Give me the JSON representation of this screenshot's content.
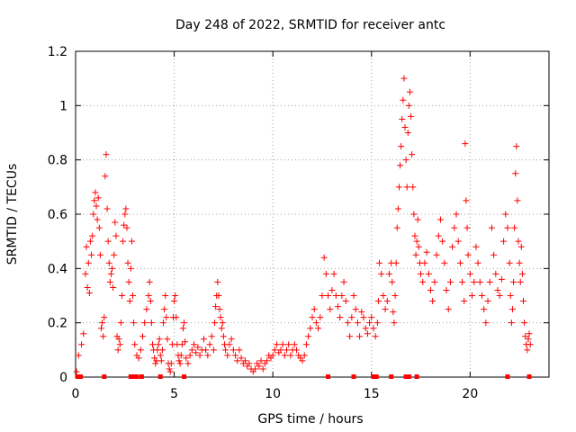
{
  "chart_data": {
    "type": "scatter",
    "title": "Day 248 of 2022, SRMTID for receiver antc",
    "xlabel": "GPS time / hours",
    "ylabel": "SRMTID / TECUs",
    "xlim": [
      0,
      24
    ],
    "ylim": [
      0,
      1.2
    ],
    "xticks": [
      0,
      5,
      10,
      15,
      20
    ],
    "yticks": [
      0,
      0.2,
      0.4,
      0.6,
      0.8,
      1.0,
      1.2
    ],
    "xtick_labels": [
      "0",
      "5",
      "10",
      "15",
      "20"
    ],
    "ytick_labels": [
      "0",
      "0.2",
      "0.4",
      "0.6",
      "0.8",
      "1",
      "1.2"
    ],
    "grid": true,
    "marker": "+",
    "color": "#ff0000",
    "series": [
      {
        "name": "SRMTID",
        "points": [
          [
            0.05,
            0.02
          ],
          [
            0.15,
            0.08
          ],
          [
            0.3,
            0.12
          ],
          [
            0.4,
            0.16
          ],
          [
            0.5,
            0.38
          ],
          [
            0.55,
            0.48
          ],
          [
            0.6,
            0.33
          ],
          [
            0.65,
            0.42
          ],
          [
            0.7,
            0.31
          ],
          [
            0.75,
            0.5
          ],
          [
            0.8,
            0.45
          ],
          [
            0.85,
            0.52
          ],
          [
            0.9,
            0.6
          ],
          [
            0.95,
            0.65
          ],
          [
            1.0,
            0.68
          ],
          [
            1.05,
            0.63
          ],
          [
            1.1,
            0.58
          ],
          [
            1.15,
            0.66
          ],
          [
            1.2,
            0.55
          ],
          [
            1.25,
            0.45
          ],
          [
            1.3,
            0.18
          ],
          [
            1.35,
            0.2
          ],
          [
            1.4,
            0.15
          ],
          [
            1.45,
            0.22
          ],
          [
            1.5,
            0.74
          ],
          [
            1.55,
            0.82
          ],
          [
            1.6,
            0.62
          ],
          [
            1.65,
            0.5
          ],
          [
            1.7,
            0.42
          ],
          [
            1.75,
            0.35
          ],
          [
            1.8,
            0.38
          ],
          [
            1.85,
            0.4
          ],
          [
            1.9,
            0.33
          ],
          [
            1.95,
            0.45
          ],
          [
            2.0,
            0.57
          ],
          [
            2.05,
            0.52
          ],
          [
            2.1,
            0.15
          ],
          [
            2.15,
            0.1
          ],
          [
            2.2,
            0.14
          ],
          [
            2.25,
            0.12
          ],
          [
            2.3,
            0.2
          ],
          [
            2.35,
            0.3
          ],
          [
            2.4,
            0.5
          ],
          [
            2.45,
            0.56
          ],
          [
            2.5,
            0.6
          ],
          [
            2.55,
            0.62
          ],
          [
            2.6,
            0.55
          ],
          [
            2.65,
            0.42
          ],
          [
            2.7,
            0.35
          ],
          [
            2.75,
            0.28
          ],
          [
            2.8,
            0.4
          ],
          [
            2.85,
            0.5
          ],
          [
            2.9,
            0.3
          ],
          [
            2.95,
            0.2
          ],
          [
            3.0,
            0.12
          ],
          [
            3.1,
            0.08
          ],
          [
            3.2,
            0.07
          ],
          [
            3.3,
            0.1
          ],
          [
            3.4,
            0.15
          ],
          [
            3.5,
            0.2
          ],
          [
            3.6,
            0.25
          ],
          [
            3.7,
            0.3
          ],
          [
            3.75,
            0.35
          ],
          [
            3.8,
            0.28
          ],
          [
            3.85,
            0.2
          ],
          [
            3.9,
            0.12
          ],
          [
            3.95,
            0.1
          ],
          [
            4.0,
            0.07
          ],
          [
            4.05,
            0.05
          ],
          [
            4.1,
            0.06
          ],
          [
            4.15,
            0.1
          ],
          [
            4.2,
            0.12
          ],
          [
            4.25,
            0.14
          ],
          [
            4.3,
            0.08
          ],
          [
            4.35,
            0.06
          ],
          [
            4.4,
            0.1
          ],
          [
            4.45,
            0.2
          ],
          [
            4.5,
            0.25
          ],
          [
            4.55,
            0.3
          ],
          [
            4.6,
            0.22
          ],
          [
            4.65,
            0.14
          ],
          [
            4.7,
            0.05
          ],
          [
            4.75,
            0.03
          ],
          [
            4.8,
            0.02
          ],
          [
            4.85,
            0.05
          ],
          [
            4.9,
            0.12
          ],
          [
            4.95,
            0.22
          ],
          [
            5.0,
            0.28
          ],
          [
            5.05,
            0.3
          ],
          [
            5.1,
            0.22
          ],
          [
            5.15,
            0.12
          ],
          [
            5.2,
            0.08
          ],
          [
            5.25,
            0.06
          ],
          [
            5.3,
            0.05
          ],
          [
            5.35,
            0.08
          ],
          [
            5.4,
            0.12
          ],
          [
            5.45,
            0.18
          ],
          [
            5.5,
            0.2
          ],
          [
            5.55,
            0.13
          ],
          [
            5.6,
            0.07
          ],
          [
            5.7,
            0.05
          ],
          [
            5.8,
            0.08
          ],
          [
            5.9,
            0.1
          ],
          [
            6.0,
            0.12
          ],
          [
            6.1,
            0.09
          ],
          [
            6.2,
            0.11
          ],
          [
            6.3,
            0.08
          ],
          [
            6.4,
            0.1
          ],
          [
            6.5,
            0.14
          ],
          [
            6.6,
            0.1
          ],
          [
            6.7,
            0.08
          ],
          [
            6.8,
            0.12
          ],
          [
            6.9,
            0.15
          ],
          [
            7.0,
            0.1
          ],
          [
            7.05,
            0.2
          ],
          [
            7.1,
            0.26
          ],
          [
            7.15,
            0.3
          ],
          [
            7.2,
            0.35
          ],
          [
            7.25,
            0.3
          ],
          [
            7.3,
            0.25
          ],
          [
            7.35,
            0.22
          ],
          [
            7.4,
            0.18
          ],
          [
            7.45,
            0.2
          ],
          [
            7.5,
            0.15
          ],
          [
            7.55,
            0.12
          ],
          [
            7.6,
            0.1
          ],
          [
            7.7,
            0.08
          ],
          [
            7.8,
            0.12
          ],
          [
            7.9,
            0.14
          ],
          [
            8.0,
            0.1
          ],
          [
            8.1,
            0.08
          ],
          [
            8.2,
            0.06
          ],
          [
            8.3,
            0.1
          ],
          [
            8.4,
            0.07
          ],
          [
            8.5,
            0.05
          ],
          [
            8.6,
            0.06
          ],
          [
            8.7,
            0.04
          ],
          [
            8.8,
            0.05
          ],
          [
            8.9,
            0.03
          ],
          [
            9.0,
            0.02
          ],
          [
            9.1,
            0.03
          ],
          [
            9.2,
            0.05
          ],
          [
            9.3,
            0.04
          ],
          [
            9.4,
            0.06
          ],
          [
            9.5,
            0.03
          ],
          [
            9.6,
            0.05
          ],
          [
            9.7,
            0.06
          ],
          [
            9.8,
            0.08
          ],
          [
            9.9,
            0.07
          ],
          [
            10.0,
            0.08
          ],
          [
            10.1,
            0.1
          ],
          [
            10.2,
            0.12
          ],
          [
            10.3,
            0.09
          ],
          [
            10.4,
            0.1
          ],
          [
            10.5,
            0.12
          ],
          [
            10.6,
            0.08
          ],
          [
            10.7,
            0.1
          ],
          [
            10.8,
            0.12
          ],
          [
            10.9,
            0.08
          ],
          [
            11.0,
            0.1
          ],
          [
            11.1,
            0.12
          ],
          [
            11.2,
            0.1
          ],
          [
            11.3,
            0.08
          ],
          [
            11.4,
            0.07
          ],
          [
            11.5,
            0.06
          ],
          [
            11.6,
            0.08
          ],
          [
            11.7,
            0.12
          ],
          [
            11.8,
            0.15
          ],
          [
            11.9,
            0.18
          ],
          [
            12.0,
            0.22
          ],
          [
            12.1,
            0.25
          ],
          [
            12.2,
            0.2
          ],
          [
            12.3,
            0.18
          ],
          [
            12.4,
            0.22
          ],
          [
            12.5,
            0.3
          ],
          [
            12.6,
            0.44
          ],
          [
            12.7,
            0.38
          ],
          [
            12.8,
            0.3
          ],
          [
            12.9,
            0.25
          ],
          [
            13.0,
            0.32
          ],
          [
            13.1,
            0.38
          ],
          [
            13.2,
            0.3
          ],
          [
            13.3,
            0.26
          ],
          [
            13.4,
            0.22
          ],
          [
            13.5,
            0.3
          ],
          [
            13.6,
            0.35
          ],
          [
            13.7,
            0.28
          ],
          [
            13.8,
            0.2
          ],
          [
            13.9,
            0.15
          ],
          [
            14.0,
            0.22
          ],
          [
            14.1,
            0.3
          ],
          [
            14.2,
            0.25
          ],
          [
            14.3,
            0.2
          ],
          [
            14.4,
            0.15
          ],
          [
            14.5,
            0.24
          ],
          [
            14.6,
            0.22
          ],
          [
            14.7,
            0.18
          ],
          [
            14.8,
            0.16
          ],
          [
            14.9,
            0.2
          ],
          [
            15.0,
            0.22
          ],
          [
            15.1,
            0.18
          ],
          [
            15.2,
            0.15
          ],
          [
            15.3,
            0.2
          ],
          [
            15.35,
            0.28
          ],
          [
            15.4,
            0.42
          ],
          [
            15.5,
            0.38
          ],
          [
            15.6,
            0.3
          ],
          [
            15.7,
            0.25
          ],
          [
            15.8,
            0.28
          ],
          [
            15.9,
            0.38
          ],
          [
            16.0,
            0.42
          ],
          [
            16.05,
            0.35
          ],
          [
            16.1,
            0.24
          ],
          [
            16.15,
            0.2
          ],
          [
            16.2,
            0.3
          ],
          [
            16.25,
            0.42
          ],
          [
            16.3,
            0.55
          ],
          [
            16.35,
            0.62
          ],
          [
            16.4,
            0.7
          ],
          [
            16.45,
            0.78
          ],
          [
            16.5,
            0.85
          ],
          [
            16.55,
            0.95
          ],
          [
            16.6,
            1.02
          ],
          [
            16.65,
            1.1
          ],
          [
            16.7,
            0.92
          ],
          [
            16.75,
            0.8
          ],
          [
            16.8,
            0.7
          ],
          [
            16.85,
            0.9
          ],
          [
            16.9,
            1.0
          ],
          [
            16.95,
            1.05
          ],
          [
            17.0,
            0.96
          ],
          [
            17.05,
            0.82
          ],
          [
            17.1,
            0.7
          ],
          [
            17.15,
            0.6
          ],
          [
            17.2,
            0.52
          ],
          [
            17.25,
            0.45
          ],
          [
            17.3,
            0.5
          ],
          [
            17.35,
            0.58
          ],
          [
            17.4,
            0.48
          ],
          [
            17.45,
            0.42
          ],
          [
            17.5,
            0.38
          ],
          [
            17.6,
            0.35
          ],
          [
            17.7,
            0.42
          ],
          [
            17.8,
            0.46
          ],
          [
            17.9,
            0.38
          ],
          [
            18.0,
            0.32
          ],
          [
            18.1,
            0.28
          ],
          [
            18.2,
            0.35
          ],
          [
            18.3,
            0.45
          ],
          [
            18.4,
            0.52
          ],
          [
            18.5,
            0.58
          ],
          [
            18.6,
            0.5
          ],
          [
            18.7,
            0.42
          ],
          [
            18.8,
            0.32
          ],
          [
            18.9,
            0.25
          ],
          [
            19.0,
            0.35
          ],
          [
            19.1,
            0.48
          ],
          [
            19.2,
            0.55
          ],
          [
            19.3,
            0.6
          ],
          [
            19.4,
            0.5
          ],
          [
            19.5,
            0.42
          ],
          [
            19.6,
            0.35
          ],
          [
            19.7,
            0.28
          ],
          [
            19.75,
            0.86
          ],
          [
            19.8,
            0.65
          ],
          [
            19.85,
            0.55
          ],
          [
            19.9,
            0.45
          ],
          [
            20.0,
            0.38
          ],
          [
            20.1,
            0.3
          ],
          [
            20.2,
            0.35
          ],
          [
            20.3,
            0.48
          ],
          [
            20.4,
            0.42
          ],
          [
            20.5,
            0.35
          ],
          [
            20.6,
            0.3
          ],
          [
            20.7,
            0.25
          ],
          [
            20.8,
            0.2
          ],
          [
            20.9,
            0.28
          ],
          [
            21.0,
            0.35
          ],
          [
            21.1,
            0.55
          ],
          [
            21.2,
            0.45
          ],
          [
            21.3,
            0.38
          ],
          [
            21.4,
            0.32
          ],
          [
            21.5,
            0.3
          ],
          [
            21.6,
            0.36
          ],
          [
            21.7,
            0.5
          ],
          [
            21.8,
            0.6
          ],
          [
            21.9,
            0.55
          ],
          [
            22.0,
            0.42
          ],
          [
            22.05,
            0.3
          ],
          [
            22.1,
            0.2
          ],
          [
            22.15,
            0.25
          ],
          [
            22.2,
            0.35
          ],
          [
            22.25,
            0.55
          ],
          [
            22.3,
            0.75
          ],
          [
            22.35,
            0.85
          ],
          [
            22.4,
            0.65
          ],
          [
            22.45,
            0.5
          ],
          [
            22.5,
            0.42
          ],
          [
            22.55,
            0.35
          ],
          [
            22.6,
            0.48
          ],
          [
            22.65,
            0.38
          ],
          [
            22.7,
            0.28
          ],
          [
            22.75,
            0.2
          ],
          [
            22.8,
            0.15
          ],
          [
            22.85,
            0.12
          ],
          [
            22.9,
            0.1
          ],
          [
            22.95,
            0.14
          ],
          [
            23.0,
            0.16
          ],
          [
            23.05,
            0.12
          ]
        ]
      }
    ],
    "baseline_flags_x": [
      0.1,
      0.25,
      1.45,
      2.8,
      2.95,
      3.1,
      3.35,
      4.3,
      5.5,
      12.8,
      14.1,
      15.1,
      15.25,
      16.0,
      16.75,
      16.9,
      17.3,
      21.9,
      23.0
    ]
  }
}
